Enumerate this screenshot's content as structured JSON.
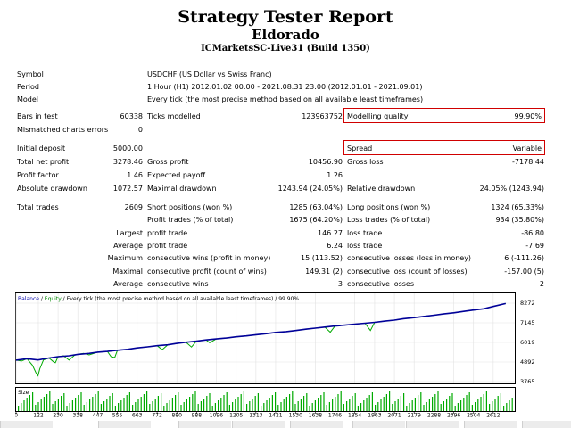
{
  "header": {
    "title": "Strategy Tester Report",
    "subtitle": "Eldorado",
    "broker": "ICMarketsSC-Live31 (Build 1350)"
  },
  "info": [
    {
      "label": "Symbol",
      "value": "USDCHF (US Dollar vs Swiss Franc)"
    },
    {
      "label": "Period",
      "value": "1 Hour (H1) 2012.01.02 00:00 - 2021.08.31 23:00 (2012.01.01 - 2021.09.01)"
    },
    {
      "label": "Model",
      "value": "Every tick (the most precise method based on all available least timeframes)"
    }
  ],
  "stats": {
    "bars_label": "Bars in test",
    "bars": "60338",
    "ticks_label": "Ticks modelled",
    "ticks": "123963752",
    "quality_label": "Modelling quality",
    "quality": "99.90%",
    "mismatched_label": "Mismatched charts errors",
    "mismatched": "0",
    "deposit_label": "Initial deposit",
    "deposit": "5000.00",
    "spread_label": "Spread",
    "spread": "Variable",
    "net_label": "Total net profit",
    "net": "3278.46",
    "gross_profit_label": "Gross profit",
    "gross_profit": "10456.90",
    "gross_loss_label": "Gross loss",
    "gross_loss": "-7178.44",
    "pf_label": "Profit factor",
    "pf": "1.46",
    "ep_label": "Expected payoff",
    "ep": "1.26",
    "abs_dd_label": "Absolute drawdown",
    "abs_dd": "1072.57",
    "max_dd_label": "Maximal drawdown",
    "max_dd": "1243.94 (24.05%)",
    "rel_dd_label": "Relative drawdown",
    "rel_dd": "24.05% (1243.94)",
    "trades_label": "Total trades",
    "trades": "2609",
    "short_label": "Short positions (won %)",
    "short": "1285 (63.04%)",
    "long_label": "Long positions (won %)",
    "long": "1324 (65.33%)",
    "pt_label": "Profit trades (% of total)",
    "pt": "1675 (64.20%)",
    "lt_label": "Loss trades (% of total)",
    "lt": "934 (35.80%)",
    "largest_label": "Largest",
    "largest_pt_label": "profit trade",
    "largest_pt": "146.27",
    "largest_lt_label": "loss trade",
    "largest_lt": "-86.80",
    "average_label": "Average",
    "avg_pt_label": "profit trade",
    "avg_pt": "6.24",
    "avg_lt_label": "loss trade",
    "avg_lt": "-7.69",
    "maximum_label": "Maximum",
    "max_cw_label": "consecutive wins (profit in money)",
    "max_cw": "15 (113.52)",
    "max_cl_label": "consecutive losses (loss in money)",
    "max_cl": "6 (-111.26)",
    "maximal_label": "Maximal",
    "mcp_label": "consecutive profit (count of wins)",
    "mcp": "149.31 (2)",
    "mcl_label": "consecutive loss (count of losses)",
    "mcl": "-157.00 (5)",
    "average2_label": "Average",
    "acw_label": "consecutive wins",
    "acw": "3",
    "acl_label": "consecutive losses",
    "acl": "2"
  },
  "chart_legend": {
    "balance": "Balance",
    "sep": " / ",
    "equity": "Equity",
    "rest": " / Every tick (the most precise method based on all available least timeframes) / 99.90%"
  },
  "chart_data": {
    "type": "line",
    "y_ticks": [
      "8272",
      "7145",
      "6019",
      "4892",
      "3765"
    ],
    "y_tick_values": [
      8272,
      7145,
      6019,
      4892,
      3765
    ],
    "ylim": [
      3765,
      8272
    ],
    "x_ticks": [
      "0",
      "122",
      "230",
      "338",
      "447",
      "555",
      "663",
      "772",
      "880",
      "988",
      "1096",
      "1205",
      "1313",
      "1421",
      "1530",
      "1638",
      "1746",
      "1854",
      "1963",
      "2071",
      "2179",
      "2288",
      "2396",
      "2504",
      "2612"
    ],
    "x_tick_values": [
      0,
      122,
      230,
      338,
      447,
      555,
      663,
      772,
      880,
      988,
      1096,
      1205,
      1313,
      1421,
      1530,
      1638,
      1746,
      1854,
      1963,
      2071,
      2179,
      2288,
      2396,
      2504,
      2612
    ],
    "xlim": [
      0,
      2730
    ],
    "size_label": "Size",
    "series": [
      {
        "name": "Balance",
        "x": [
          0,
          60,
          120,
          180,
          230,
          290,
          338,
          400,
          447,
          500,
          555,
          610,
          663,
          720,
          772,
          830,
          880,
          930,
          988,
          1040,
          1096,
          1150,
          1205,
          1260,
          1313,
          1370,
          1421,
          1480,
          1530,
          1590,
          1638,
          1690,
          1746,
          1800,
          1854,
          1910,
          1963,
          2020,
          2071,
          2120,
          2179,
          2230,
          2288,
          2340,
          2396,
          2450,
          2504,
          2560,
          2612,
          2680
        ],
        "values": [
          5000,
          5080,
          5010,
          5120,
          5200,
          5250,
          5330,
          5390,
          5460,
          5500,
          5570,
          5620,
          5700,
          5760,
          5830,
          5880,
          5960,
          6030,
          6090,
          6160,
          6220,
          6270,
          6340,
          6390,
          6460,
          6520,
          6590,
          6640,
          6700,
          6780,
          6840,
          6900,
          6960,
          7010,
          7070,
          7120,
          7170,
          7240,
          7300,
          7380,
          7440,
          7510,
          7580,
          7650,
          7720,
          7800,
          7880,
          7950,
          8080,
          8250
        ]
      },
      {
        "name": "Equity",
        "x": [
          0,
          30,
          60,
          90,
          110,
          120,
          130,
          150,
          180,
          205,
          215,
          230,
          260,
          290,
          320,
          338,
          370,
          400,
          447,
          500,
          520,
          540,
          555,
          610,
          663,
          720,
          772,
          800,
          830,
          880,
          930,
          960,
          988,
          1040,
          1060,
          1096,
          1150,
          1205,
          1260,
          1313,
          1370,
          1421,
          1480,
          1530,
          1590,
          1638,
          1690,
          1720,
          1746,
          1800,
          1854,
          1910,
          1940,
          1963,
          2020,
          2071,
          2120,
          2179,
          2230,
          2288,
          2340,
          2396,
          2450,
          2504,
          2560,
          2612,
          2680
        ],
        "values": [
          5000,
          4950,
          5080,
          4700,
          4250,
          4100,
          4500,
          5010,
          5120,
          4900,
          4850,
          5200,
          5250,
          5000,
          5280,
          5330,
          5390,
          5300,
          5460,
          5500,
          5200,
          5150,
          5570,
          5620,
          5700,
          5760,
          5830,
          5600,
          5880,
          5960,
          6030,
          5750,
          6090,
          6160,
          6000,
          6220,
          6270,
          6340,
          6390,
          6460,
          6520,
          6590,
          6640,
          6700,
          6780,
          6840,
          6900,
          6600,
          6960,
          7010,
          7070,
          7120,
          6700,
          7170,
          7240,
          7300,
          7380,
          7440,
          7510,
          7580,
          7650,
          7720,
          7800,
          7880,
          7950,
          8080,
          8250
        ]
      }
    ]
  }
}
